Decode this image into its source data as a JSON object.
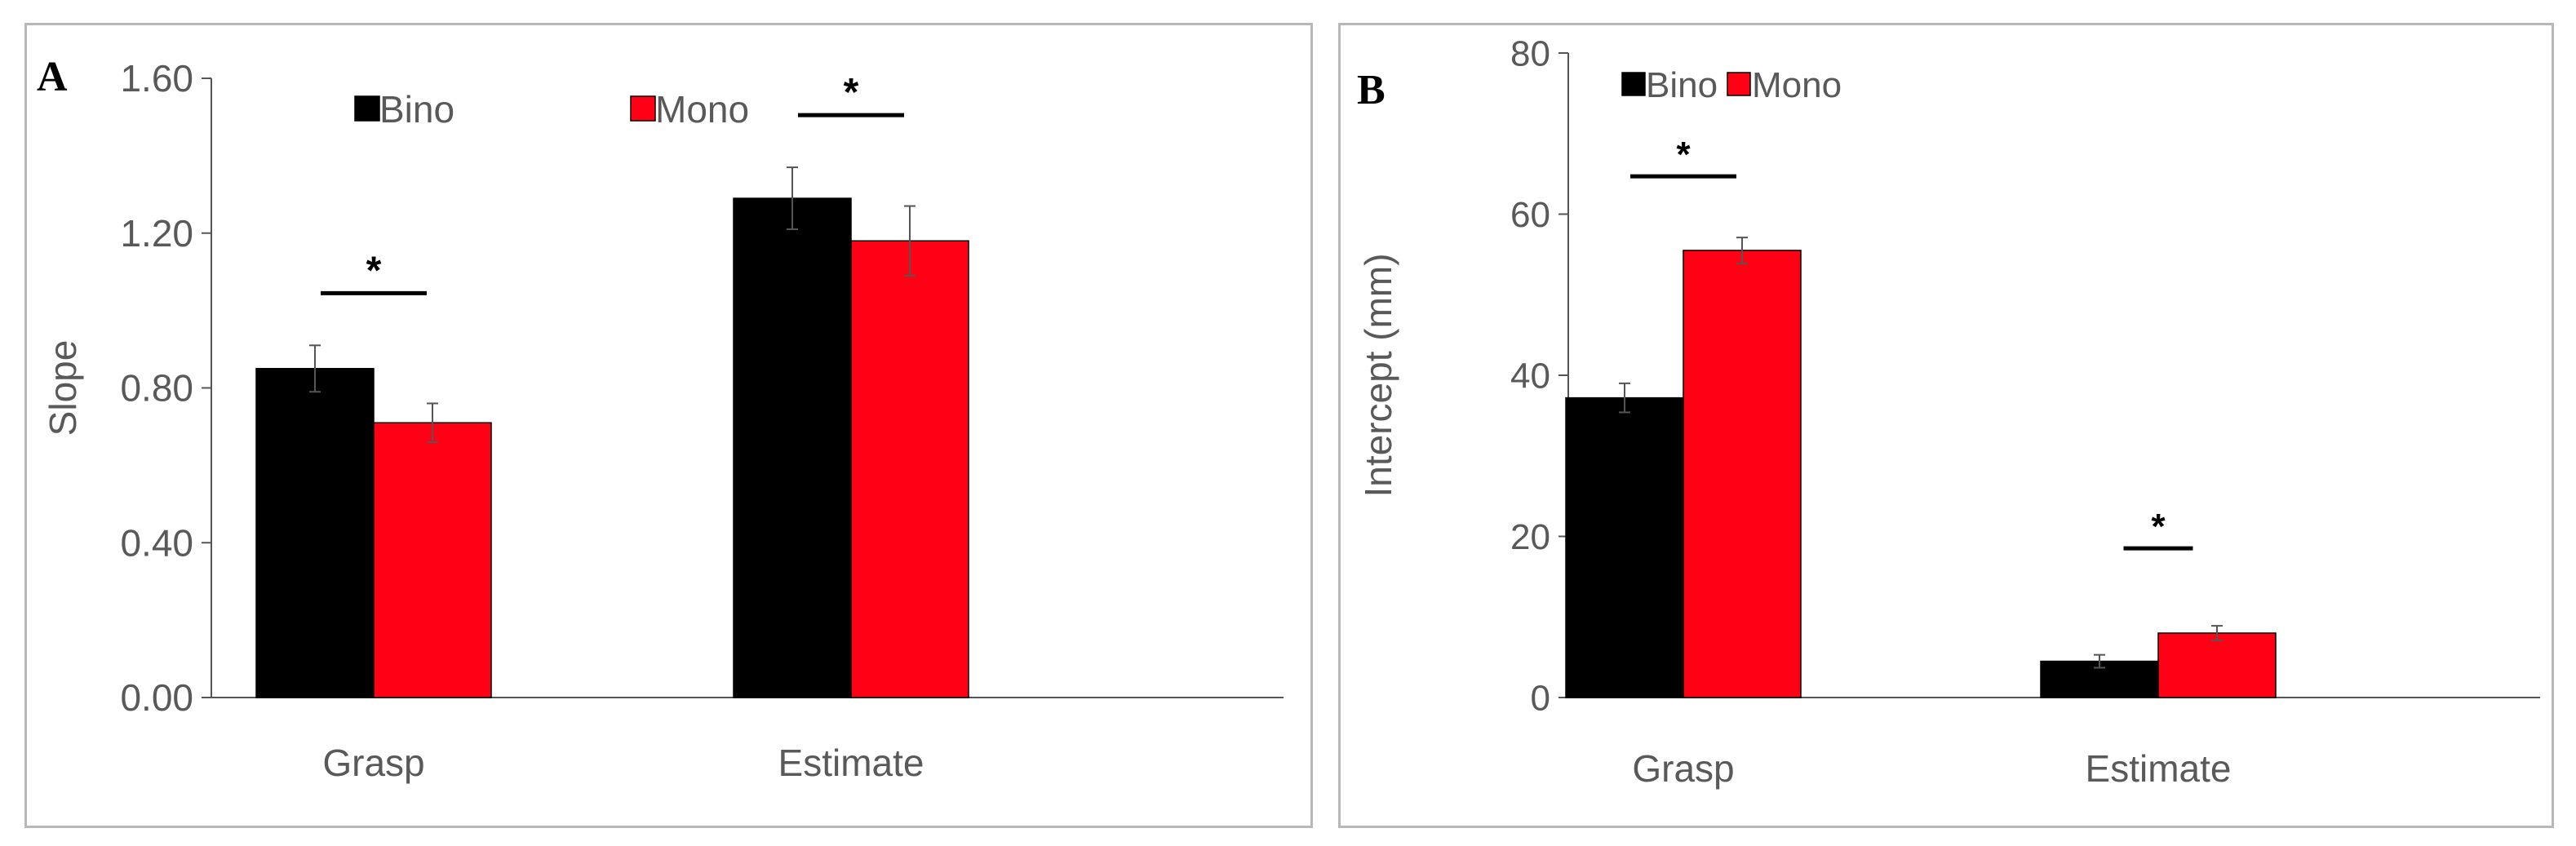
{
  "chart_data": [
    {
      "panel_label": "A",
      "type": "bar",
      "categories": [
        "Grasp",
        "Estimate"
      ],
      "series": [
        {
          "name": "Bino",
          "color": "#000000",
          "values": [
            0.85,
            1.29
          ],
          "errors": [
            0.06,
            0.08
          ]
        },
        {
          "name": "Mono",
          "color": "#ff0015",
          "values": [
            0.71,
            1.18
          ],
          "errors": [
            0.05,
            0.09
          ]
        }
      ],
      "ylabel": "Slope",
      "xlabel": "",
      "ylim": [
        0,
        1.6
      ],
      "yticks": [
        "0.00",
        "0.40",
        "0.80",
        "1.20",
        "1.60"
      ],
      "significance": [
        "*",
        "*"
      ],
      "legend_position": "top",
      "grid": false
    },
    {
      "panel_label": "B",
      "type": "bar",
      "categories": [
        "Grasp",
        "Estimate"
      ],
      "series": [
        {
          "name": "Bino",
          "color": "#000000",
          "values": [
            37.2,
            4.5
          ],
          "errors": [
            1.8,
            0.8
          ]
        },
        {
          "name": "Mono",
          "color": "#ff0015",
          "values": [
            55.5,
            8.0
          ],
          "errors": [
            1.6,
            0.9
          ]
        }
      ],
      "ylabel": "Intercept (mm)",
      "xlabel": "",
      "ylim": [
        0,
        80
      ],
      "yticks": [
        "0",
        "20",
        "40",
        "60",
        "80"
      ],
      "significance": [
        "*",
        "*"
      ],
      "legend_position": "top",
      "grid": false
    }
  ]
}
